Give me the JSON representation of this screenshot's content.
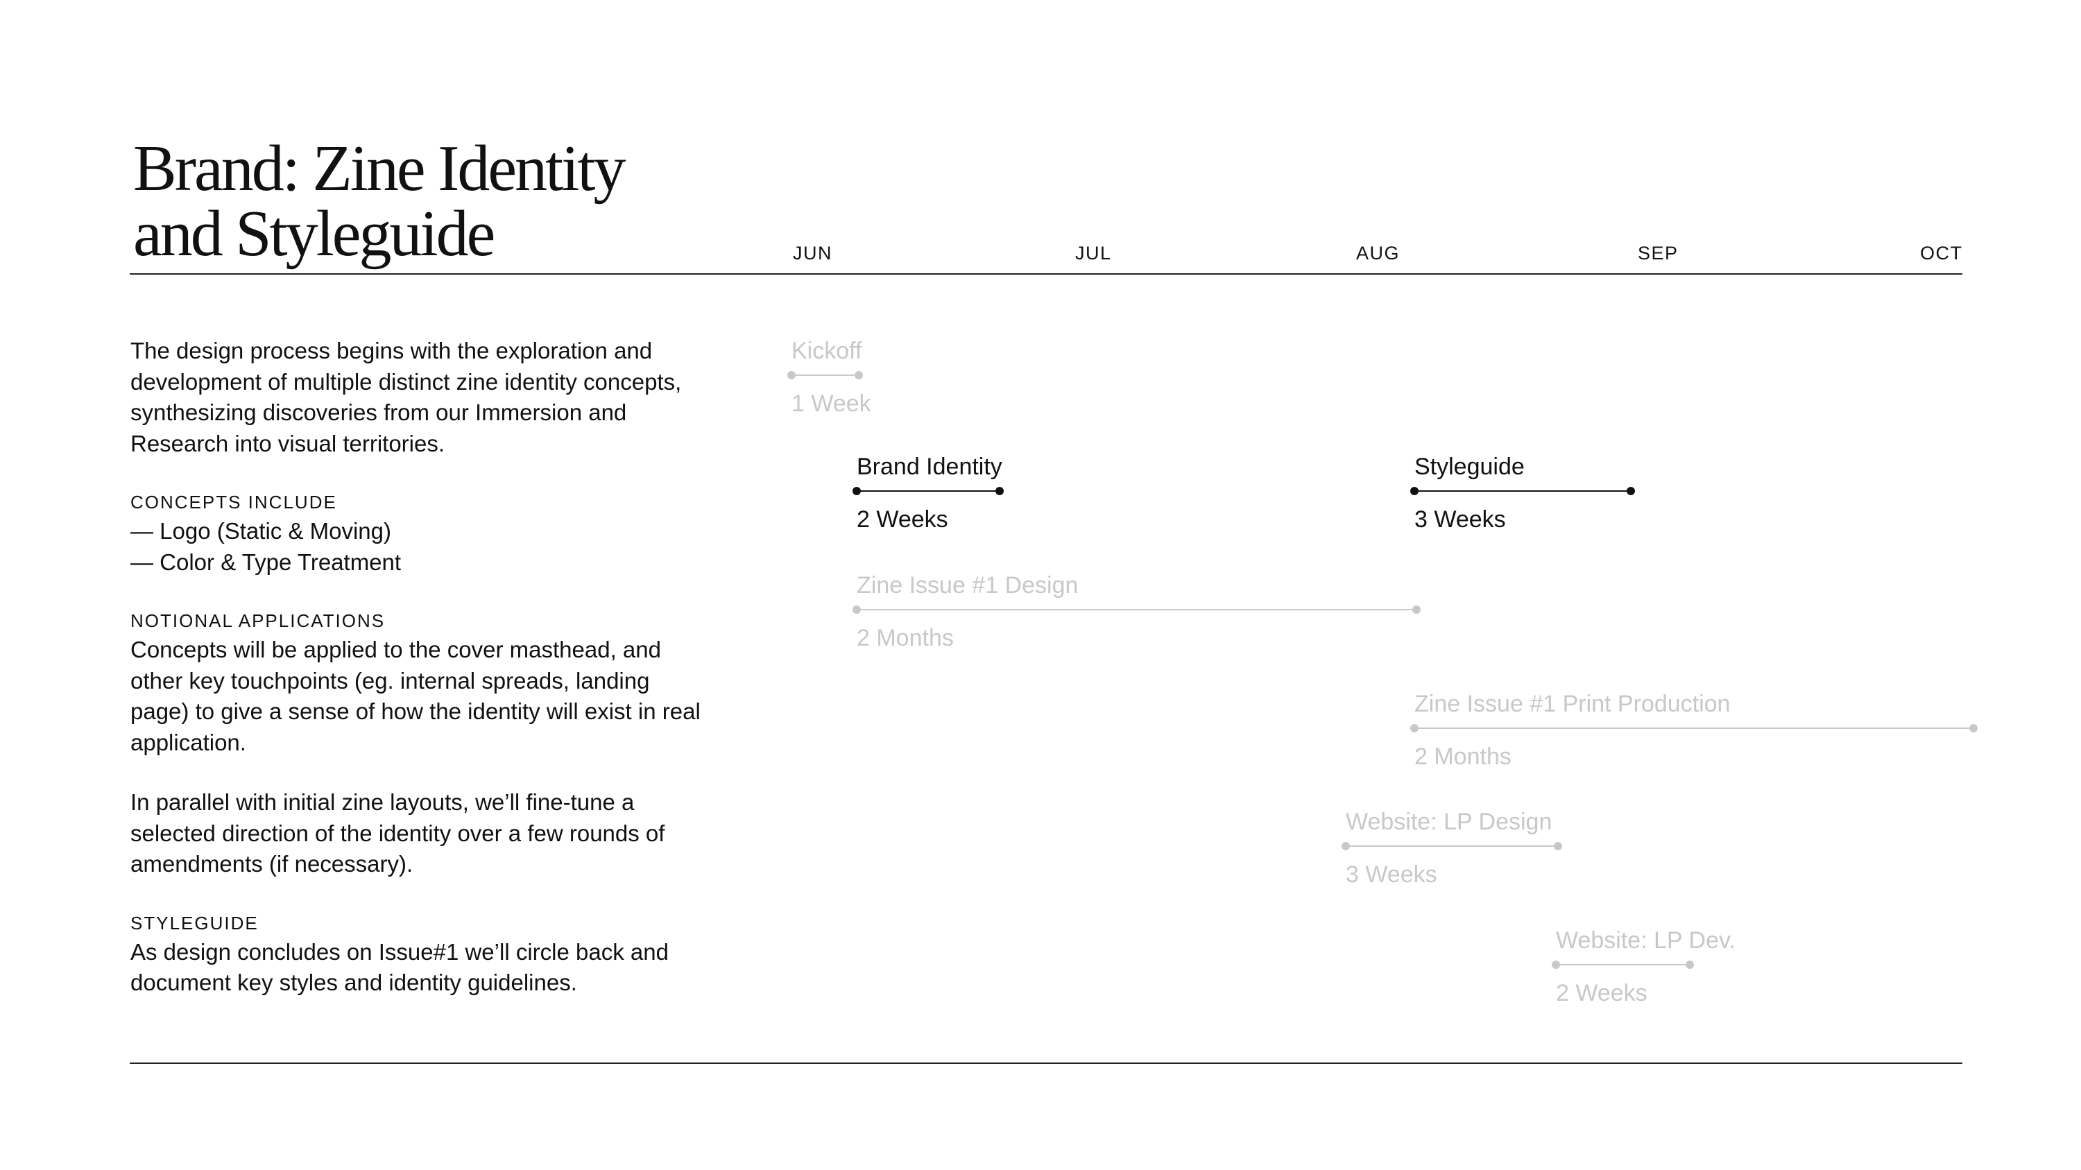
{
  "title": {
    "line1": "Brand: Zine Identity",
    "line2": "and Styleguide"
  },
  "months": [
    "JUN",
    "JUL",
    "AUG",
    "SEP",
    "OCT"
  ],
  "description": {
    "intro": "The design process begins with the exploration and development of multiple distinct zine identity concepts, synthesizing discoveries from our Immersion and Research into visual territories.",
    "concepts_heading": "CONCEPTS INCLUDE",
    "concepts_items": [
      "— Logo (Static & Moving)",
      "— Color & Type Treatment"
    ],
    "applications_heading": "NOTIONAL APPLICATIONS",
    "applications_text": "Concepts will be applied to the cover masthead, and  other key touchpoints (eg. internal spreads, landing page) to give a sense of how the identity will exist in real application.",
    "parallel_text": "In parallel with initial zine layouts, we’ll fine-tune a selected direction of the identity over a few rounds of amendments (if necessary).",
    "styleguide_heading": "STYLEGUIDE",
    "styleguide_text": "As design concludes on Issue#1 we’ll circle back and document key styles and identity guidelines."
  },
  "colors": {
    "active": "#111111",
    "muted": "#c8c8c8"
  },
  "tasks": [
    {
      "name": "Kickoff",
      "duration": "1 Week",
      "state": "muted"
    },
    {
      "name": "Brand Identity",
      "duration": "2 Weeks",
      "state": "active"
    },
    {
      "name": "Styleguide",
      "duration": "3 Weeks",
      "state": "active"
    },
    {
      "name": "Zine Issue #1 Design",
      "duration": "2 Months",
      "state": "muted"
    },
    {
      "name": "Zine Issue #1 Print Production",
      "duration": "2 Months",
      "state": "muted"
    },
    {
      "name": "Website: LP Design",
      "duration": "3 Weeks",
      "state": "muted"
    },
    {
      "name": "Website: LP Dev.",
      "duration": "2 Weeks",
      "state": "muted"
    }
  ]
}
